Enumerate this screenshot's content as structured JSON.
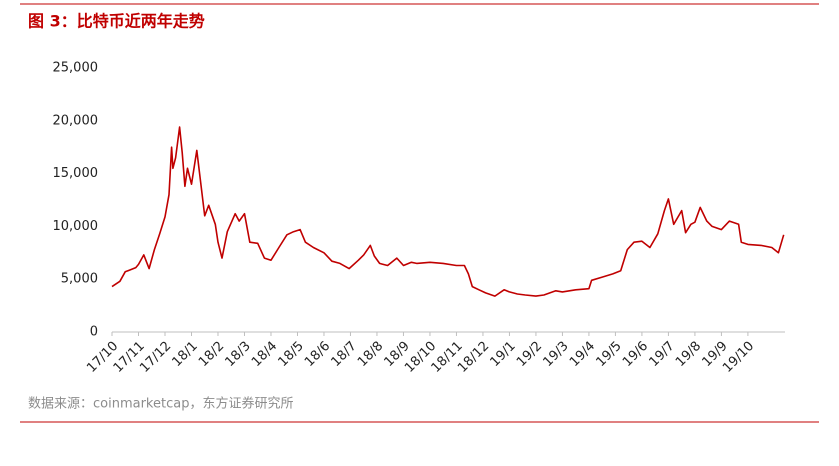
{
  "chart_data": {
    "type": "line",
    "title": "图 3：比特币近两年走势",
    "source": "数据来源：coinmarketcap，东方证券研究所",
    "x": [
      0,
      0.3,
      0.5,
      0.7,
      0.9,
      1.0,
      1.2,
      1.4,
      1.6,
      1.8,
      2.0,
      2.15,
      2.25,
      2.3,
      2.4,
      2.55,
      2.65,
      2.75,
      2.85,
      3.0,
      3.2,
      3.5,
      3.65,
      3.9,
      4.0,
      4.15,
      4.35,
      4.65,
      4.8,
      5.0,
      5.2,
      5.5,
      5.75,
      6.0,
      6.3,
      6.6,
      6.85,
      7.1,
      7.3,
      7.6,
      8.0,
      8.3,
      8.6,
      8.95,
      9.3,
      9.5,
      9.75,
      9.9,
      10.1,
      10.4,
      10.75,
      11.0,
      11.3,
      11.5,
      12.0,
      12.5,
      13.0,
      13.3,
      13.45,
      13.6,
      13.85,
      14.1,
      14.45,
      14.8,
      15.0,
      15.3,
      15.6,
      16.0,
      16.3,
      16.75,
      17.0,
      17.5,
      18.0,
      18.1,
      18.5,
      18.9,
      19.2,
      19.45,
      19.7,
      20.0,
      20.3,
      20.6,
      20.85,
      21.0,
      21.2,
      21.5,
      21.65,
      21.85,
      22.0,
      22.2,
      22.45,
      22.65,
      23.0,
      23.3,
      23.65,
      23.75,
      24.0,
      24.5,
      24.9,
      25.15,
      25.35
    ],
    "series": [
      {
        "name": "比特币",
        "color": "#c00000",
        "values": [
          4300,
          4800,
          5700,
          5900,
          6100,
          6400,
          7300,
          6000,
          7800,
          9300,
          10900,
          13000,
          17500,
          15500,
          16500,
          19400,
          17000,
          13800,
          15500,
          14000,
          17200,
          11000,
          12000,
          10200,
          8500,
          7000,
          9500,
          11200,
          10500,
          11200,
          8500,
          8400,
          7000,
          6800,
          8000,
          9200,
          9500,
          9700,
          8500,
          8000,
          7500,
          6700,
          6500,
          6000,
          6800,
          7300,
          8200,
          7200,
          6500,
          6300,
          7000,
          6300,
          6600,
          6500,
          6600,
          6500,
          6300,
          6300,
          5500,
          4300,
          4000,
          3700,
          3400,
          4000,
          3800,
          3600,
          3500,
          3400,
          3500,
          3900,
          3800,
          4000,
          4100,
          4900,
          5200,
          5500,
          5800,
          7800,
          8500,
          8600,
          8000,
          9300,
          11500,
          12600,
          10200,
          11500,
          9400,
          10200,
          10400,
          11800,
          10500,
          10000,
          9700,
          10500,
          10200,
          8500,
          8300,
          8200,
          8000,
          7500,
          9200
        ]
      }
    ],
    "xlim": [
      0,
      25.4
    ],
    "xticks": [
      {
        "value": 0,
        "label": "17/10"
      },
      {
        "value": 1,
        "label": "17/11"
      },
      {
        "value": 2,
        "label": "17/12"
      },
      {
        "value": 3,
        "label": "18/1"
      },
      {
        "value": 4,
        "label": "18/2"
      },
      {
        "value": 5,
        "label": "18/3"
      },
      {
        "value": 6,
        "label": "18/4"
      },
      {
        "value": 7,
        "label": "18/5"
      },
      {
        "value": 8,
        "label": "18/6"
      },
      {
        "value": 9,
        "label": "18/7"
      },
      {
        "value": 10,
        "label": "18/8"
      },
      {
        "value": 11,
        "label": "18/9"
      },
      {
        "value": 12,
        "label": "18/10"
      },
      {
        "value": 13,
        "label": "18/11"
      },
      {
        "value": 14,
        "label": "18/12"
      },
      {
        "value": 15,
        "label": "19/1"
      },
      {
        "value": 16,
        "label": "19/2"
      },
      {
        "value": 17,
        "label": "19/3"
      },
      {
        "value": 18,
        "label": "19/4"
      },
      {
        "value": 19,
        "label": "19/5"
      },
      {
        "value": 20,
        "label": "19/6"
      },
      {
        "value": 21,
        "label": "19/7"
      },
      {
        "value": 22,
        "label": "19/8"
      },
      {
        "value": 23,
        "label": "19/9"
      },
      {
        "value": 24,
        "label": "19/10"
      }
    ],
    "ylim": [
      0,
      25000
    ],
    "yticks": [
      0,
      {
        "value": 5000,
        "label": "5,000"
      },
      {
        "value": 10000,
        "label": "10,000"
      },
      {
        "value": 15000,
        "label": "15,000"
      },
      {
        "value": 20000,
        "label": "20,000"
      },
      {
        "value": 25000,
        "label": "25,000"
      }
    ],
    "grid": false
  }
}
